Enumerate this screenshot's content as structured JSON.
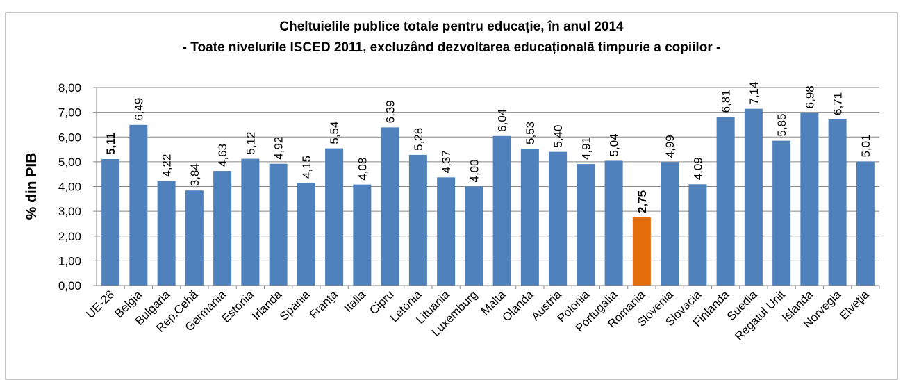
{
  "chart_data": {
    "type": "bar",
    "title": "Cheltuielile publice totale pentru educație, în anul 2014",
    "subtitle": "- Toate nivelurile ISCED 2011, excluzând dezvoltarea educațională timpurie a copiilor -",
    "ylabel": "% din PIB",
    "categories": [
      "UE-28",
      "Belgia",
      "Bulgaria",
      "Rep.Cehă",
      "Germania",
      "Estonia",
      "Irlanda",
      "Spania",
      "Franţa",
      "Italia",
      "Cipru",
      "Letonia",
      "Lituania",
      "Luxemburg",
      "Malta",
      "Olanda",
      "Austria",
      "Polonia",
      "Portugalia",
      "Romania",
      "Slovenia",
      "Slovacia",
      "Finlanda",
      "Suedia",
      "Regatul Unit",
      "Islanda",
      "Norvegia",
      "Elveţia"
    ],
    "values": [
      5.11,
      6.49,
      4.22,
      3.84,
      4.63,
      5.12,
      4.92,
      4.15,
      5.54,
      4.08,
      6.39,
      5.28,
      4.37,
      4.0,
      6.04,
      5.53,
      5.4,
      4.91,
      5.04,
      2.75,
      4.99,
      4.09,
      6.81,
      7.14,
      5.85,
      6.98,
      6.71,
      5.01
    ],
    "value_labels": [
      "5,11",
      "6,49",
      "4,22",
      "3,84",
      "4,63",
      "5,12",
      "4,92",
      "4,15",
      "5,54",
      "4,08",
      "6,39",
      "5,28",
      "4,37",
      "4,00",
      "6,04",
      "5,53",
      "5,40",
      "4,91",
      "5,04",
      "2,75",
      "4,99",
      "4,09",
      "6,81",
      "7,14",
      "5,85",
      "6,98",
      "6,71",
      "5,01"
    ],
    "colors": [
      "#4f81bd",
      "#4f81bd",
      "#4f81bd",
      "#4f81bd",
      "#4f81bd",
      "#4f81bd",
      "#4f81bd",
      "#4f81bd",
      "#4f81bd",
      "#4f81bd",
      "#4f81bd",
      "#4f81bd",
      "#4f81bd",
      "#4f81bd",
      "#4f81bd",
      "#4f81bd",
      "#4f81bd",
      "#4f81bd",
      "#4f81bd",
      "#e46c0a",
      "#4f81bd",
      "#4f81bd",
      "#4f81bd",
      "#4f81bd",
      "#4f81bd",
      "#4f81bd",
      "#4f81bd",
      "#4f81bd"
    ],
    "label_colors": [
      "#ff0000",
      "#000000",
      "#000000",
      "#000000",
      "#000000",
      "#000000",
      "#000000",
      "#000000",
      "#000000",
      "#000000",
      "#000000",
      "#000000",
      "#000000",
      "#000000",
      "#000000",
      "#000000",
      "#000000",
      "#000000",
      "#000000",
      "#ff0000",
      "#000000",
      "#000000",
      "#000000",
      "#000000",
      "#000000",
      "#000000",
      "#000000",
      "#000000"
    ],
    "ylim": [
      0,
      8
    ],
    "yticks": [
      {
        "value": 0,
        "label": "0,00"
      },
      {
        "value": 1,
        "label": "1,00"
      },
      {
        "value": 2,
        "label": "2,00"
      },
      {
        "value": 3,
        "label": "3,00"
      },
      {
        "value": 4,
        "label": "4,00"
      },
      {
        "value": 5,
        "label": "5,00"
      },
      {
        "value": 6,
        "label": "6,00"
      },
      {
        "value": 7,
        "label": "7,00"
      },
      {
        "value": 8,
        "label": "8,00"
      }
    ],
    "grid": true
  }
}
